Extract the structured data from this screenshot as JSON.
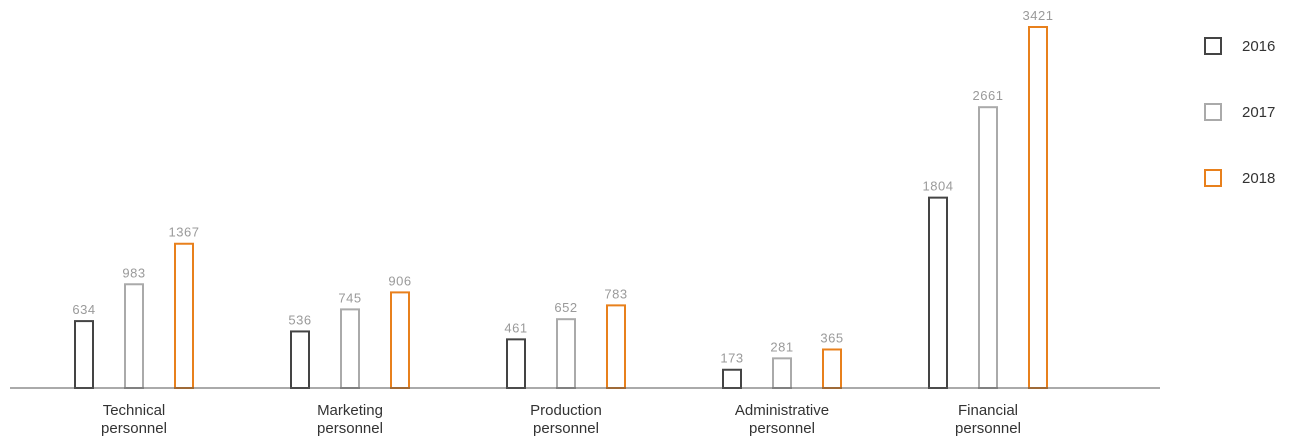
{
  "chart_data": {
    "type": "bar",
    "categories": [
      [
        "Technical",
        "personnel"
      ],
      [
        "Marketing",
        "personnel"
      ],
      [
        "Production",
        "personnel"
      ],
      [
        "Administrative",
        "personnel"
      ],
      [
        "Financial",
        "personnel"
      ]
    ],
    "series": [
      {
        "name": "2016",
        "color": "#444444",
        "values": [
          634,
          536,
          461,
          173,
          1804
        ]
      },
      {
        "name": "2017",
        "color": "#aaaaaa",
        "values": [
          983,
          745,
          652,
          281,
          2661
        ]
      },
      {
        "name": "2018",
        "color": "#e8801c",
        "values": [
          1367,
          906,
          783,
          365,
          3421
        ]
      }
    ],
    "title": "",
    "xlabel": "",
    "ylabel": "",
    "ylim": [
      0,
      3421
    ],
    "grid": false,
    "legend": "right",
    "bar_style": "outline",
    "axis_color": "#555555"
  }
}
